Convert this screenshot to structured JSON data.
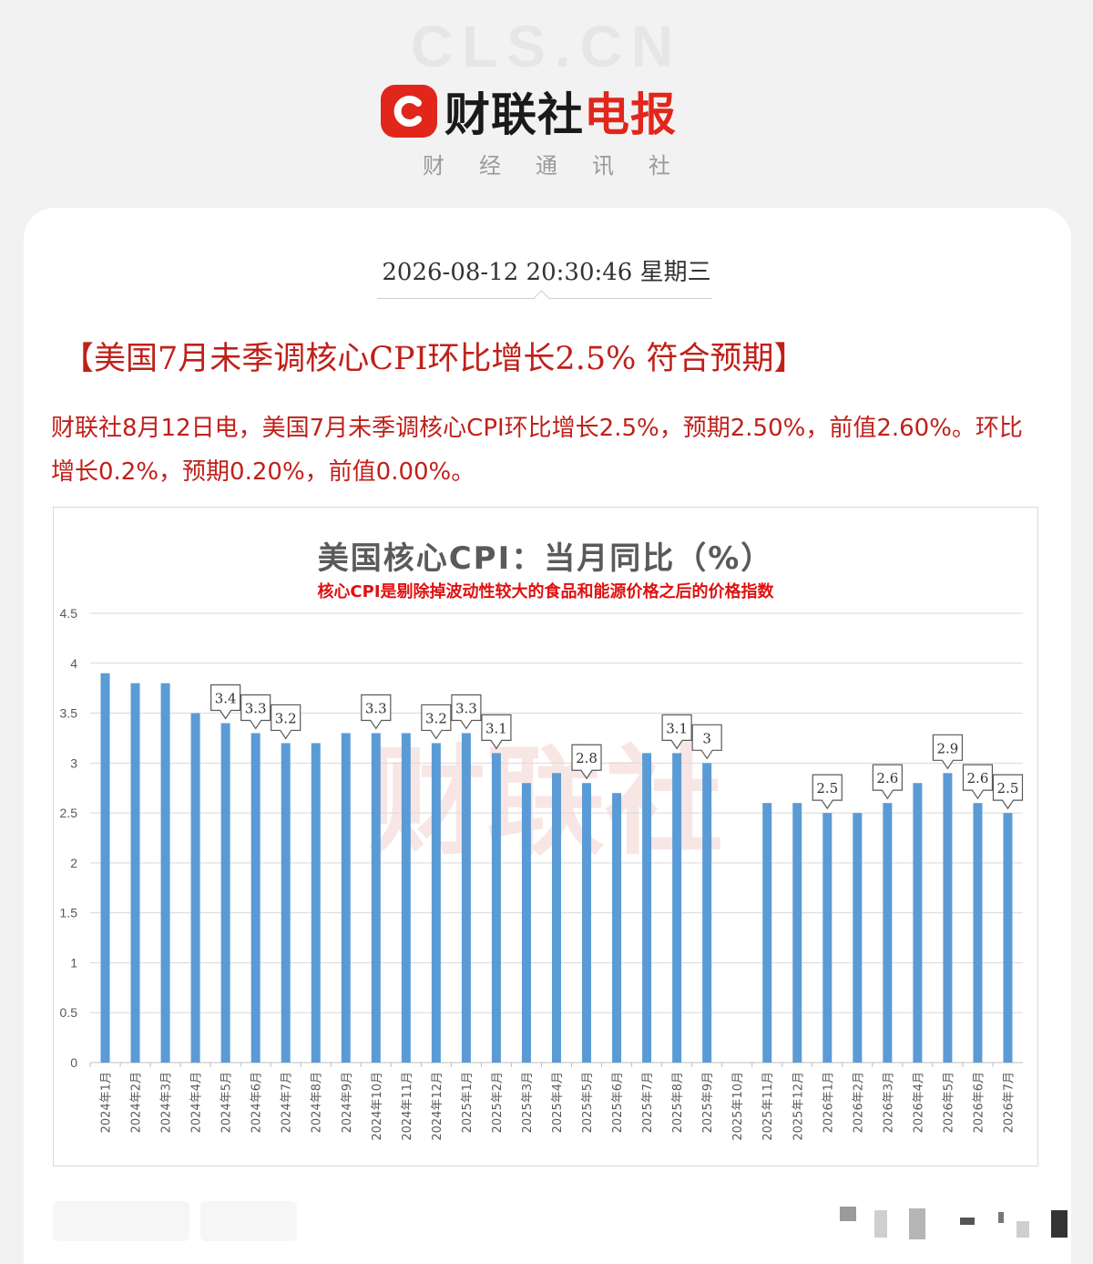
{
  "header": {
    "watermark": "CLS.CN",
    "brand_logo_letter": "C",
    "brand_name_black": "财联社",
    "brand_name_red": "电报",
    "brand_sub": "财经通讯社"
  },
  "article": {
    "datetime": "2026-08-12 20:30:46 星期三",
    "headline": "【美国7月未季调核心CPI环比增长2.5% 符合预期】",
    "body": "财联社8月12日电，美国7月未季调核心CPI环比增长2.5%，预期2.50%，前值2.60%。环比增长0.2%，预期0.20%，前值0.00%。"
  },
  "colors": {
    "brand_red": "#e1261c",
    "text_red": "#c0201a",
    "bar_blue": "#5b9bd5"
  },
  "chart_data": {
    "type": "bar",
    "title": "美国核心CPI：当月同比（%）",
    "subtitle": "核心CPI是剔除掉波动性较大的食品和能源价格之后的价格指数",
    "watermark": "财联社",
    "categories": [
      "2024年1月",
      "2024年2月",
      "2024年3月",
      "2024年4月",
      "2024年5月",
      "2024年6月",
      "2024年7月",
      "2024年8月",
      "2024年9月",
      "2024年10月",
      "2024年11月",
      "2024年12月",
      "2025年1月",
      "2025年2月",
      "2025年3月",
      "2025年4月",
      "2025年5月",
      "2025年6月",
      "2025年7月",
      "2025年8月",
      "2025年9月",
      "2025年10月",
      "2025年11月",
      "2025年12月",
      "2026年1月",
      "2026年2月",
      "2026年3月",
      "2026年4月",
      "2026年5月",
      "2026年6月",
      "2026年7月"
    ],
    "values": [
      3.9,
      3.8,
      3.8,
      3.5,
      3.4,
      3.3,
      3.2,
      3.2,
      3.3,
      3.3,
      3.3,
      3.2,
      3.3,
      3.1,
      2.8,
      2.9,
      2.8,
      2.7,
      3.1,
      3.1,
      3.0,
      null,
      2.6,
      2.6,
      2.5,
      2.5,
      2.6,
      2.8,
      2.9,
      2.6,
      2.5
    ],
    "data_labels": [
      "",
      "",
      "",
      "",
      "3.4",
      "3.3",
      "3.2",
      "",
      "",
      "3.3",
      "",
      "3.2",
      "3.3",
      "3.1",
      "",
      "",
      "2.8",
      "",
      "",
      "3.1",
      "3",
      "",
      "",
      "",
      "2.5",
      "",
      "2.6",
      "",
      "2.9",
      "2.6",
      "2.5"
    ],
    "yticks": [
      "0",
      "0.5",
      "1",
      "1.5",
      "2",
      "2.5",
      "3",
      "3.5",
      "4",
      "4.5"
    ],
    "ylim": [
      0,
      4.5
    ],
    "grid": true
  }
}
